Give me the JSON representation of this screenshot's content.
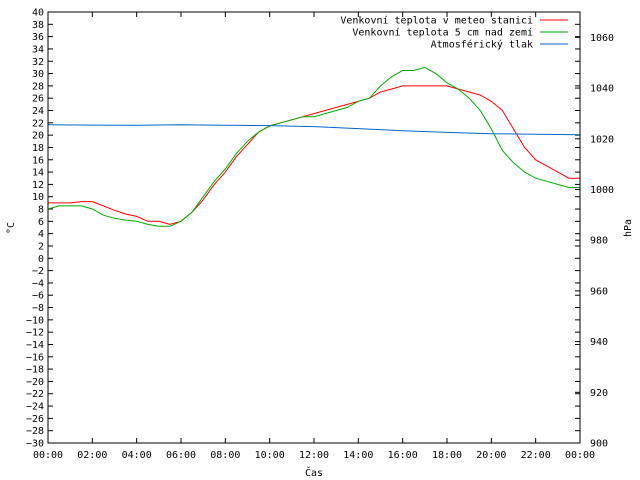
{
  "chart_data": {
    "type": "line",
    "xlabel": "Čas",
    "ylabel": "°C",
    "y2label": "hPa",
    "xlim": [
      0,
      24
    ],
    "ylim": [
      -30,
      40
    ],
    "y2lim": [
      900,
      1070
    ],
    "xticks": [
      "00:00",
      "02:00",
      "04:00",
      "06:00",
      "08:00",
      "10:00",
      "12:00",
      "14:00",
      "16:00",
      "18:00",
      "20:00",
      "22:00",
      "00:00"
    ],
    "yticks": [
      "40",
      "38",
      "36",
      "34",
      "32",
      "30",
      "28",
      "26",
      "24",
      "22",
      "20",
      "18",
      "16",
      "14",
      "12",
      "10",
      "8",
      "6",
      "4",
      "2",
      "0",
      "−2",
      "−4",
      "−6",
      "−8",
      "−10",
      "−12",
      "−14",
      "−16",
      "−18",
      "−20",
      "−22",
      "−24",
      "−26",
      "−28",
      "−30"
    ],
    "y2ticks": [
      "1060",
      "1040",
      "1020",
      "1000",
      "980",
      "960",
      "940",
      "920",
      "900"
    ],
    "legend_position": "top-right",
    "series": [
      {
        "name": "Venkovní teplota v meteo stanici",
        "color": "#ff0000",
        "axis": "y",
        "x": [
          0,
          0.5,
          1,
          1.5,
          2,
          2.5,
          3,
          3.5,
          4,
          4.5,
          5,
          5.5,
          6,
          6.5,
          7,
          7.5,
          8,
          8.5,
          9,
          9.5,
          10,
          10.5,
          11,
          11.5,
          12,
          12.5,
          13,
          13.5,
          14,
          14.5,
          15,
          15.5,
          16,
          16.5,
          17,
          17.5,
          18,
          18.5,
          19,
          19.5,
          20,
          20.5,
          21,
          21.5,
          22,
          22.5,
          23,
          23.5,
          24
        ],
        "values": [
          9,
          9,
          9,
          9.2,
          9.2,
          8.5,
          7.8,
          7.2,
          6.8,
          6,
          6,
          5.5,
          6,
          7.5,
          9.5,
          12,
          14,
          16.5,
          18.5,
          20.5,
          21.5,
          22,
          22.5,
          23,
          23.5,
          24,
          24.5,
          25,
          25.5,
          26,
          27,
          27.5,
          28,
          28,
          28,
          28,
          28,
          27.5,
          27,
          26.5,
          25.5,
          24,
          21,
          18,
          16,
          15,
          14,
          13,
          13
        ]
      },
      {
        "name": "Venkovní teplota 5 cm nad zemí",
        "color": "#00aa00",
        "axis": "y",
        "x": [
          0,
          0.5,
          1,
          1.5,
          2,
          2.5,
          3,
          3.5,
          4,
          4.5,
          5,
          5.5,
          6,
          6.5,
          7,
          7.5,
          8,
          8.5,
          9,
          9.5,
          10,
          10.5,
          11,
          11.5,
          12,
          12.5,
          13,
          13.5,
          14,
          14.5,
          15,
          15.5,
          16,
          16.5,
          17,
          17.5,
          18,
          18.5,
          19,
          19.5,
          20,
          20.5,
          21,
          21.5,
          22,
          22.5,
          23,
          23.5,
          24
        ],
        "values": [
          8,
          8.5,
          8.5,
          8.5,
          8,
          7,
          6.5,
          6.2,
          6,
          5.5,
          5.2,
          5.2,
          6,
          7.5,
          10,
          12.5,
          14.5,
          17,
          19,
          20.5,
          21.5,
          22,
          22.5,
          23,
          23,
          23.5,
          24,
          24.5,
          25.5,
          26,
          28,
          29.5,
          30.5,
          30.5,
          31,
          30,
          28.5,
          27.5,
          26,
          24,
          21,
          17.5,
          15.5,
          14,
          13,
          12.5,
          12,
          11.5,
          11.5
        ]
      },
      {
        "name": "Atmosférický tlak",
        "color": "#0066cc",
        "axis": "y2",
        "x": [
          0,
          2,
          4,
          6,
          8,
          10,
          12,
          14,
          16,
          18,
          20,
          22,
          24
        ],
        "values": [
          1025.5,
          1025.4,
          1025.3,
          1025.5,
          1025.3,
          1025.2,
          1024.8,
          1024,
          1023.2,
          1022.5,
          1022,
          1021.8,
          1021.6
        ]
      }
    ]
  }
}
